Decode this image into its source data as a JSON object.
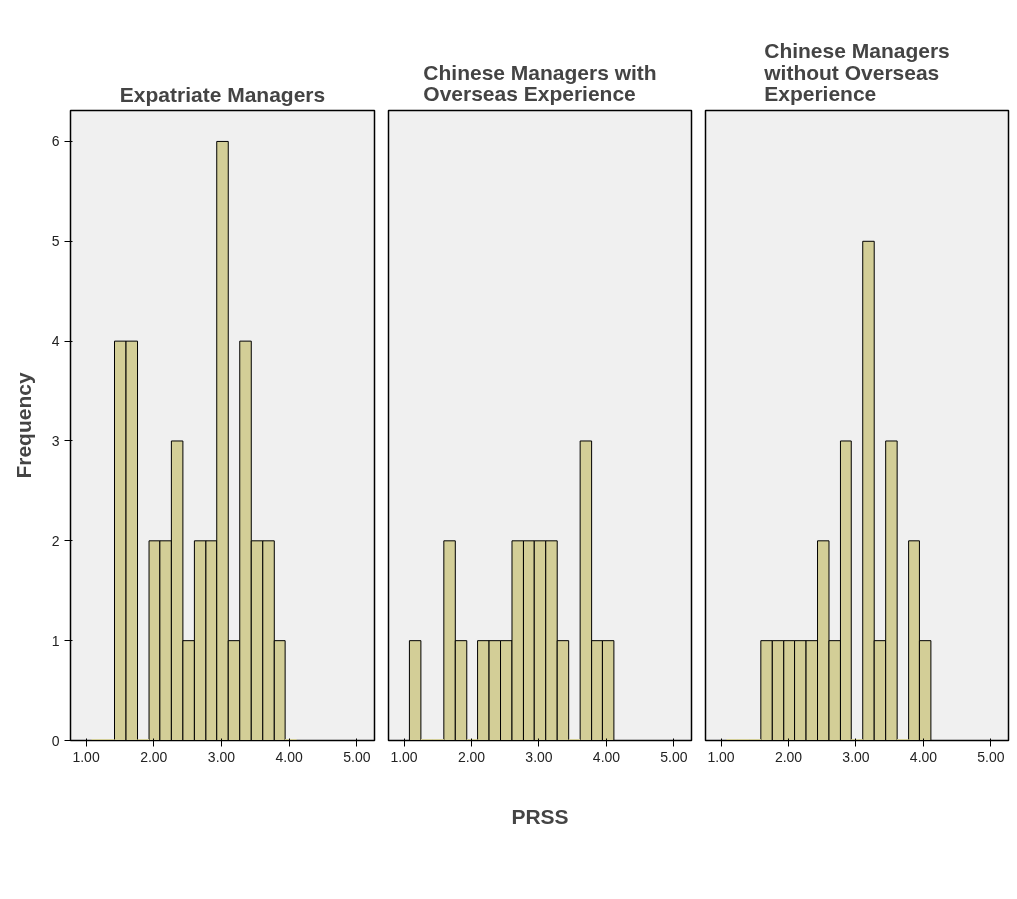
{
  "chart_data": [
    {
      "type": "histogram",
      "title": "Expatriate Managers",
      "ylabel": "Frequency",
      "color": "#d3ce97",
      "bins": [
        1.08,
        1.25,
        1.42,
        1.59,
        1.76,
        1.93,
        2.09,
        2.26,
        2.43,
        2.6,
        2.77,
        2.93,
        3.1,
        3.27,
        3.44,
        3.61,
        3.78,
        3.94,
        4.11
      ],
      "values": [
        0,
        0,
        4,
        4,
        0,
        2,
        2,
        3,
        1,
        2,
        2,
        6,
        1,
        4,
        2,
        2,
        1,
        0
      ],
      "xlim": [
        0.77,
        5.26
      ],
      "ylim": [
        0,
        6.31
      ],
      "xticks": [
        {
          "value": 1,
          "label": "1.00"
        },
        {
          "value": 2,
          "label": "2.00"
        },
        {
          "value": 3,
          "label": "3.00"
        },
        {
          "value": 4,
          "label": "4.00"
        },
        {
          "value": 5,
          "label": "5.00"
        }
      ],
      "yticks": [
        0,
        1,
        2,
        3,
        4,
        5,
        6
      ],
      "grid": false
    },
    {
      "type": "histogram",
      "title": "Chinese Managers with Overseas Experience",
      "xlabel": "PRSS",
      "color": "#d3ce97",
      "bins": [
        1.08,
        1.25,
        1.42,
        1.59,
        1.76,
        1.93,
        2.09,
        2.26,
        2.43,
        2.6,
        2.77,
        2.93,
        3.1,
        3.27,
        3.44,
        3.61,
        3.78,
        3.94,
        4.11
      ],
      "values": [
        1,
        0,
        0,
        2,
        1,
        0,
        1,
        1,
        1,
        2,
        2,
        2,
        2,
        1,
        0,
        3,
        1,
        1
      ],
      "xlim": [
        0.77,
        5.26
      ],
      "ylim": [
        0,
        6.31
      ],
      "xticks": [
        {
          "value": 1,
          "label": "1.00"
        },
        {
          "value": 2,
          "label": "2.00"
        },
        {
          "value": 3,
          "label": "3.00"
        },
        {
          "value": 4,
          "label": "4.00"
        },
        {
          "value": 5,
          "label": "5.00"
        }
      ],
      "yticks": [
        0,
        1,
        2,
        3,
        4,
        5,
        6
      ],
      "tick_labels": "x",
      "grid": false
    },
    {
      "type": "histogram",
      "title": "Chinese Managers without Overseas Experience",
      "color": "#d3ce97",
      "bins": [
        1.08,
        1.25,
        1.42,
        1.59,
        1.76,
        1.93,
        2.09,
        2.26,
        2.43,
        2.6,
        2.77,
        2.93,
        3.1,
        3.27,
        3.44,
        3.61,
        3.78,
        3.94,
        4.11
      ],
      "values": [
        0,
        0,
        0,
        1,
        1,
        1,
        1,
        1,
        2,
        1,
        3,
        0,
        5,
        1,
        3,
        0,
        2,
        1
      ],
      "xlim": [
        0.77,
        5.26
      ],
      "ylim": [
        0,
        6.31
      ],
      "xticks": [
        {
          "value": 1,
          "label": "1.00"
        },
        {
          "value": 2,
          "label": "2.00"
        },
        {
          "value": 3,
          "label": "3.00"
        },
        {
          "value": 4,
          "label": "4.00"
        },
        {
          "value": 5,
          "label": "5.00"
        }
      ],
      "yticks": [
        0,
        1,
        2,
        3,
        4,
        5,
        6
      ],
      "tick_labels": "x",
      "grid": false
    }
  ]
}
